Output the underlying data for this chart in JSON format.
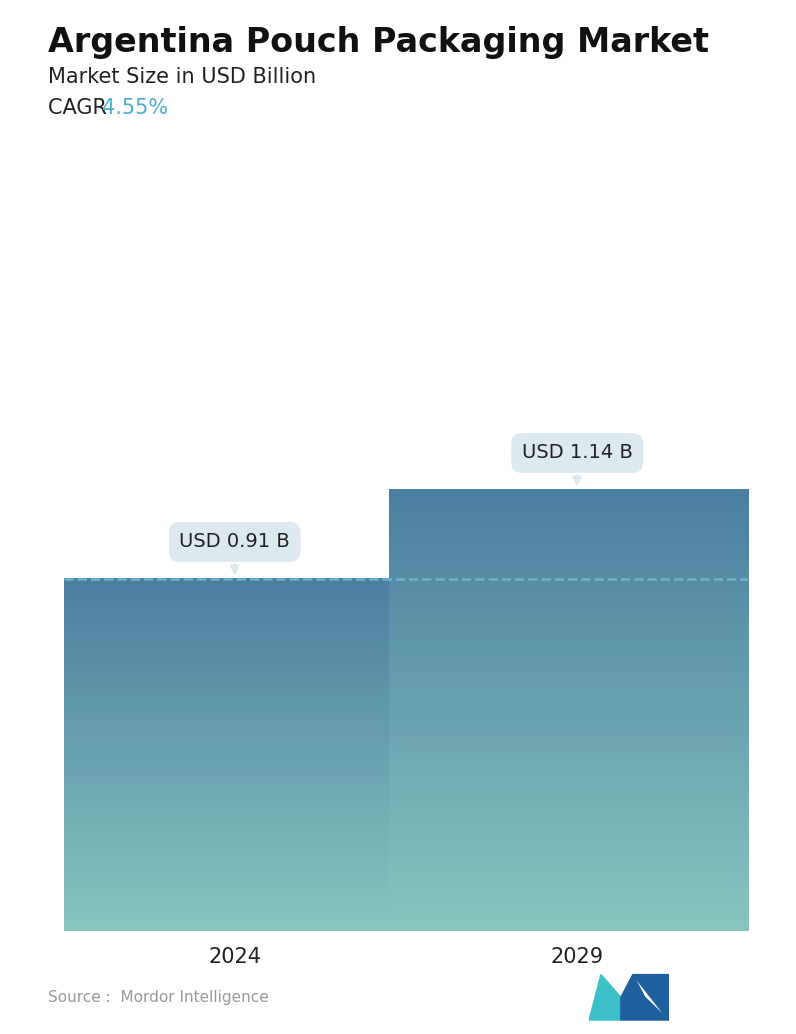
{
  "title": "Argentina Pouch Packaging Market",
  "subtitle": "Market Size in USD Billion",
  "cagr_label": "CAGR ",
  "cagr_value": "4.55%",
  "cagr_color": "#4BAED0",
  "categories": [
    "2024",
    "2029"
  ],
  "values": [
    0.91,
    1.14
  ],
  "labels": [
    "USD 0.91 B",
    "USD 1.14 B"
  ],
  "dashed_line_color": "#7AB8D0",
  "dashed_line_y": 0.91,
  "source_text": "Source :  Mordor Intelligence",
  "source_color": "#999999",
  "background_color": "#FFFFFF",
  "title_fontsize": 24,
  "subtitle_fontsize": 15,
  "cagr_fontsize": 15,
  "label_fontsize": 14,
  "tick_fontsize": 15,
  "bar_width": 0.55,
  "bar_positions": [
    0.25,
    0.75
  ],
  "ylim": [
    0,
    1.55
  ],
  "xlim": [
    0,
    1
  ],
  "bar_color_top": "#4A7FA0",
  "bar_color_bottom": "#88C5C0",
  "annotation_bg": "#DCE9EE",
  "annotation_text_color": "#222222"
}
